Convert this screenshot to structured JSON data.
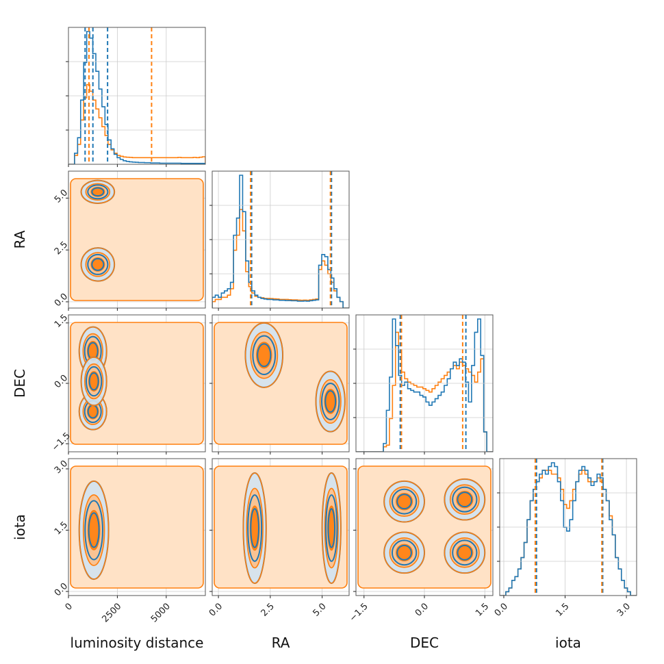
{
  "chart_data": {
    "type": "corner",
    "parameters": [
      {
        "name": "luminosity distance",
        "range": [
          0,
          7000
        ],
        "ticks": [
          {
            "v": 0,
            "label": "0"
          },
          {
            "v": 2500,
            "label": "2500"
          },
          {
            "v": 5000,
            "label": "5000"
          }
        ]
      },
      {
        "name": "RA",
        "range": [
          -0.3,
          6.3
        ],
        "ticks": [
          {
            "v": 0,
            "label": "0.0"
          },
          {
            "v": 2.5,
            "label": "2.5"
          },
          {
            "v": 5,
            "label": "5.0"
          }
        ]
      },
      {
        "name": "DEC",
        "range": [
          -1.7,
          1.7
        ],
        "ticks": [
          {
            "v": -1.5,
            "label": "−1.5"
          },
          {
            "v": 0,
            "label": "0.0"
          },
          {
            "v": 1.5,
            "label": "1.5"
          }
        ]
      },
      {
        "name": "iota",
        "range": [
          -0.1,
          3.25
        ],
        "ticks": [
          {
            "v": 0,
            "label": "0.0"
          },
          {
            "v": 1.5,
            "label": "1.5"
          },
          {
            "v": 3,
            "label": "3.0"
          }
        ]
      }
    ],
    "series": [
      {
        "color": "#1f77b4"
      },
      {
        "color": "#ff7f0e"
      }
    ],
    "hist_bins": 45,
    "hist_density": [
      [
        [
          0,
          0,
          5,
          12,
          29,
          46,
          60,
          57,
          50,
          42,
          34,
          26,
          18,
          11,
          7,
          4.5,
          3,
          2.2,
          1.6,
          1.3,
          1.1,
          1,
          0.9,
          0.8,
          0.8,
          0.7,
          0.7,
          0.6,
          0.6,
          0.6,
          0.5,
          0.5,
          0.5,
          0.5,
          0.5,
          0.5,
          0.5,
          0.4,
          0.4,
          0.4,
          0.4,
          0.4,
          0.4,
          0.4,
          0.4
        ],
        [
          0,
          0,
          4,
          9,
          20,
          30,
          36,
          33,
          29,
          25,
          21,
          17,
          13,
          9,
          6.5,
          5,
          4,
          3.6,
          3.3,
          3.2,
          3.1,
          3,
          3,
          3,
          3,
          3,
          3,
          3,
          3,
          3,
          3,
          3,
          3,
          3,
          3,
          3,
          3.1,
          3,
          3,
          3,
          3,
          3.1,
          3,
          3.2,
          3.4
        ]
      ],
      [
        [
          5,
          6,
          5,
          7,
          8,
          9,
          12,
          34,
          42,
          62,
          45,
          22,
          12,
          8,
          6,
          5,
          4.5,
          4.2,
          4,
          4,
          3.8,
          3.8,
          3.6,
          3.6,
          3.5,
          3.5,
          3.4,
          3.4,
          3.2,
          3.2,
          3.3,
          3.2,
          3.4,
          3.6,
          3.8,
          20,
          25,
          24,
          18,
          14,
          9,
          5,
          3,
          0,
          0
        ],
        [
          3,
          4,
          4,
          5,
          5,
          6,
          9,
          27,
          34,
          46,
          36,
          17,
          10,
          7,
          5.5,
          5,
          4.8,
          4.5,
          4.5,
          4.4,
          4.3,
          4.2,
          4,
          4,
          4,
          3.9,
          3.8,
          3.8,
          3.7,
          3.6,
          3.7,
          3.6,
          3.8,
          4,
          4.2,
          18,
          22,
          20,
          16,
          12,
          8,
          5,
          3,
          0,
          0
        ]
      ],
      [
        [
          0,
          0,
          0,
          0,
          0,
          0,
          0,
          0,
          0,
          5,
          25,
          45,
          80,
          64,
          46,
          40,
          42,
          38,
          37,
          36,
          36,
          34,
          33,
          30,
          28,
          30,
          32,
          34,
          36,
          40,
          44,
          50,
          54,
          52,
          56,
          54,
          42,
          30,
          52,
          72,
          80,
          58,
          12,
          0,
          0
        ],
        [
          0,
          0,
          0,
          0,
          0,
          0,
          0,
          0,
          0,
          3,
          4,
          20,
          40,
          72,
          60,
          48,
          44,
          42,
          41,
          40,
          39,
          39,
          38,
          37,
          36,
          38,
          40,
          42,
          44,
          46,
          48,
          50,
          52,
          50,
          54,
          52,
          50,
          48,
          46,
          42,
          48,
          56,
          12,
          0,
          0
        ]
      ],
      [
        [
          0,
          0,
          1,
          2,
          4,
          5,
          7,
          10,
          14,
          20,
          25,
          28,
          30,
          32,
          33,
          32,
          34,
          35,
          34,
          30,
          25,
          18,
          17,
          20,
          25,
          30,
          33,
          34,
          33,
          31,
          29,
          30,
          32,
          31,
          28,
          25,
          20,
          16,
          10,
          7,
          4,
          2,
          1,
          0,
          0
        ],
        [
          0,
          0,
          1,
          2,
          4,
          5,
          7,
          10,
          14,
          20,
          25,
          28,
          30,
          31,
          33,
          33,
          33,
          32,
          32,
          31,
          28,
          24,
          23,
          25,
          28,
          30,
          32,
          33,
          32,
          30,
          30,
          30,
          31,
          30,
          28,
          25,
          21,
          16,
          10,
          7,
          4,
          2,
          1,
          0,
          0
        ]
      ]
    ],
    "quantile_lines": [
      [
        [
          850,
          1250,
          2000
        ],
        [
          1050,
          4250
        ]
      ],
      [
        [
          1.6,
          5.45
        ],
        [
          1.55,
          5.4
        ]
      ],
      [
        [
          -0.6,
          1.03
        ],
        [
          -0.57,
          0.95
        ]
      ],
      [
        [
          0.8,
          2.42
        ],
        [
          0.77,
          2.4
        ]
      ]
    ],
    "contour_modes": {
      "1-0": [
        [
          1500,
          5.3,
          850,
          0.55
        ],
        [
          1500,
          1.8,
          850,
          0.8
        ]
      ],
      "2-0": [
        [
          1250,
          0.8,
          700,
          0.6
        ],
        [
          1250,
          -0.7,
          700,
          0.45
        ],
        [
          1300,
          0.05,
          650,
          0.6
        ]
      ],
      "2-1": [
        [
          2.2,
          0.7,
          0.9,
          0.8
        ],
        [
          5.4,
          -0.45,
          0.7,
          0.75
        ]
      ],
      "3-0": [
        [
          1300,
          1.5,
          750,
          1.2
        ]
      ],
      "3-1": [
        [
          1.75,
          1.55,
          0.55,
          1.35
        ],
        [
          5.45,
          1.55,
          0.45,
          1.35
        ]
      ],
      "3-2": [
        [
          -0.5,
          2.2,
          0.5,
          0.5
        ],
        [
          1.0,
          2.25,
          0.5,
          0.5
        ],
        [
          -0.5,
          0.95,
          0.5,
          0.5
        ],
        [
          1.0,
          0.95,
          0.5,
          0.5
        ]
      ]
    }
  }
}
